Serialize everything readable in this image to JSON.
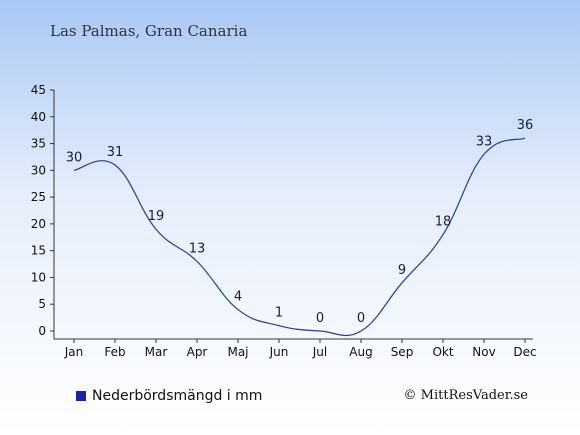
{
  "chart_data": {
    "type": "line",
    "title": "Las Palmas, Gran Canaria",
    "categories": [
      "Jan",
      "Feb",
      "Mar",
      "Apr",
      "Maj",
      "Jun",
      "Jul",
      "Aug",
      "Sep",
      "Okt",
      "Nov",
      "Dec"
    ],
    "series": [
      {
        "name": "Nederbördsmängd i mm",
        "values": [
          30,
          31,
          19,
          13,
          4,
          1,
          0,
          0,
          9,
          18,
          33,
          36
        ]
      }
    ],
    "data_labels": [
      "30",
      "31",
      "19",
      "13",
      "4",
      "1",
      "0",
      "0",
      "9",
      "18",
      "33",
      "36"
    ],
    "y_ticks": [
      "0",
      "5",
      "10",
      "15",
      "20",
      "25",
      "30",
      "35",
      "40",
      "45"
    ],
    "ylim": [
      0,
      45
    ],
    "grid": false,
    "legend_position": "bottom-left",
    "line_color": "#2b3a9a",
    "legend_color": "#1a22a8"
  },
  "credit": "© MittResVader.se"
}
